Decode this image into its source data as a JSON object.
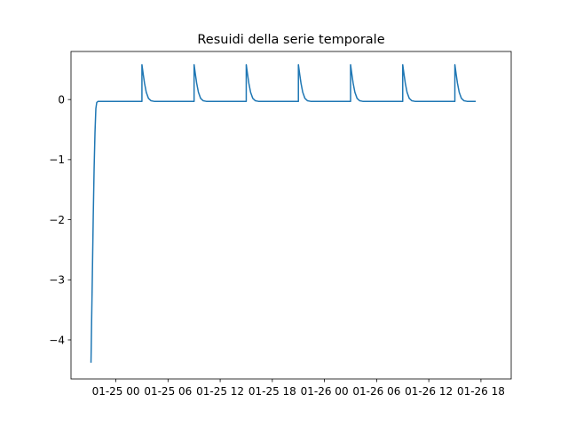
{
  "chart_data": {
    "type": "line",
    "title": "Resuidi della serie temporale",
    "xlabel": "",
    "ylabel": "",
    "x_unit": "hours",
    "x_axis": {
      "range_hours": [
        -5.16,
        45.48
      ],
      "ticks": [
        {
          "hours": 0,
          "label": "01-25 00"
        },
        {
          "hours": 6,
          "label": "01-25 06"
        },
        {
          "hours": 12,
          "label": "01-25 12"
        },
        {
          "hours": 18,
          "label": "01-25 18"
        },
        {
          "hours": 24,
          "label": "01-26 00"
        },
        {
          "hours": 30,
          "label": "01-26 06"
        },
        {
          "hours": 36,
          "label": "01-26 12"
        },
        {
          "hours": 42,
          "label": "01-26 18"
        }
      ]
    },
    "y_axis": {
      "range": [
        -4.65,
        0.8
      ],
      "ticks": [
        {
          "value": 0,
          "label": "0"
        },
        {
          "value": -1,
          "label": "−1"
        },
        {
          "value": -2,
          "label": "−2"
        },
        {
          "value": -3,
          "label": "−3"
        },
        {
          "value": -4,
          "label": "−4"
        }
      ]
    },
    "grid": false,
    "series": [
      {
        "color": "#1f77b4",
        "points": [
          [
            -2.86,
            -4.38
          ],
          [
            -2.8,
            -3.8
          ],
          [
            -2.7,
            -2.9
          ],
          [
            -2.6,
            -1.95
          ],
          [
            -2.5,
            -1.15
          ],
          [
            -2.4,
            -0.55
          ],
          [
            -2.3,
            -0.15
          ],
          [
            -2.2,
            -0.05
          ],
          [
            -2.05,
            -0.03
          ],
          [
            3.0,
            -0.03
          ],
          [
            3.0,
            0.58
          ],
          [
            3.15,
            0.42
          ],
          [
            3.3,
            0.27
          ],
          [
            3.5,
            0.12
          ],
          [
            3.75,
            0.02
          ],
          [
            4.05,
            -0.02
          ],
          [
            4.4,
            -0.03
          ],
          [
            9.0,
            -0.03
          ],
          [
            9.0,
            0.58
          ],
          [
            9.15,
            0.42
          ],
          [
            9.3,
            0.27
          ],
          [
            9.5,
            0.12
          ],
          [
            9.75,
            0.02
          ],
          [
            10.05,
            -0.02
          ],
          [
            10.4,
            -0.03
          ],
          [
            15.0,
            -0.03
          ],
          [
            15.0,
            0.58
          ],
          [
            15.15,
            0.42
          ],
          [
            15.3,
            0.27
          ],
          [
            15.5,
            0.12
          ],
          [
            15.75,
            0.02
          ],
          [
            16.05,
            -0.02
          ],
          [
            16.4,
            -0.03
          ],
          [
            21.0,
            -0.03
          ],
          [
            21.0,
            0.58
          ],
          [
            21.15,
            0.42
          ],
          [
            21.3,
            0.27
          ],
          [
            21.5,
            0.12
          ],
          [
            21.75,
            0.02
          ],
          [
            22.05,
            -0.02
          ],
          [
            22.4,
            -0.03
          ],
          [
            27.0,
            -0.03
          ],
          [
            27.0,
            0.58
          ],
          [
            27.15,
            0.42
          ],
          [
            27.3,
            0.27
          ],
          [
            27.5,
            0.12
          ],
          [
            27.75,
            0.02
          ],
          [
            28.05,
            -0.02
          ],
          [
            28.4,
            -0.03
          ],
          [
            33.0,
            -0.03
          ],
          [
            33.0,
            0.58
          ],
          [
            33.15,
            0.42
          ],
          [
            33.3,
            0.27
          ],
          [
            33.5,
            0.12
          ],
          [
            33.75,
            0.02
          ],
          [
            34.05,
            -0.02
          ],
          [
            34.4,
            -0.03
          ],
          [
            39.0,
            -0.03
          ],
          [
            39.0,
            0.58
          ],
          [
            39.15,
            0.42
          ],
          [
            39.3,
            0.27
          ],
          [
            39.5,
            0.12
          ],
          [
            39.75,
            0.02
          ],
          [
            40.05,
            -0.02
          ],
          [
            40.4,
            -0.03
          ],
          [
            41.4,
            -0.03
          ]
        ]
      }
    ]
  }
}
